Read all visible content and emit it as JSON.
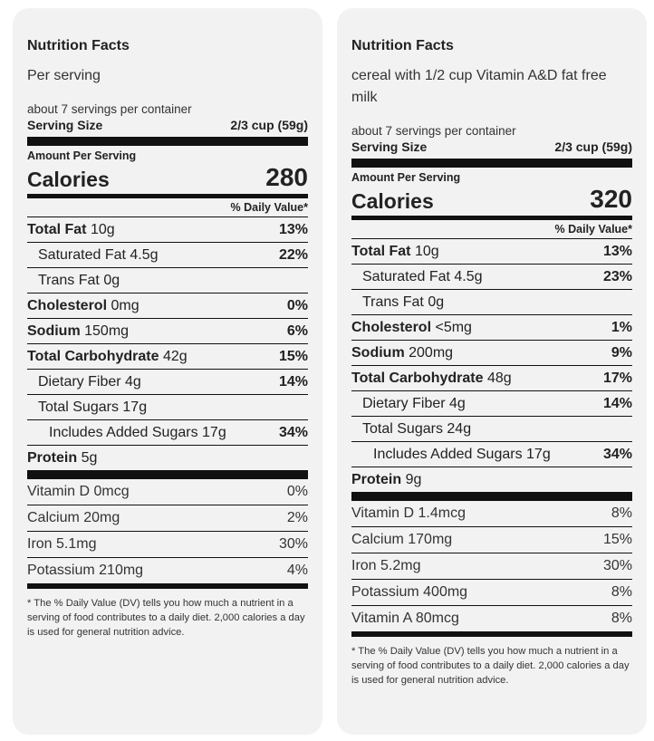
{
  "labels": [
    {
      "title": "Nutrition Facts",
      "description": "Per serving",
      "servings_per_container": "about 7 servings per container",
      "serving_size_label": "Serving Size",
      "serving_size_value": "2/3 cup (59g)",
      "amount_per_serving": "Amount Per Serving",
      "calories_label": "Calories",
      "calories_value": "280",
      "dv_header": "% Daily Value*",
      "nutrients": [
        {
          "name": "Total Fat",
          "amount": "10g",
          "dv": "13%",
          "bold": true,
          "indent": 0
        },
        {
          "name": "Saturated Fat",
          "amount": "4.5g",
          "dv": "22%",
          "bold": false,
          "indent": 1
        },
        {
          "name": "Trans Fat",
          "amount": "0g",
          "dv": "",
          "bold": false,
          "indent": 1
        },
        {
          "name": "Cholesterol",
          "amount": "0mg",
          "dv": "0%",
          "bold": true,
          "indent": 0
        },
        {
          "name": "Sodium",
          "amount": "150mg",
          "dv": "6%",
          "bold": true,
          "indent": 0
        },
        {
          "name": "Total Carbohydrate",
          "amount": "42g",
          "dv": "15%",
          "bold": true,
          "indent": 0
        },
        {
          "name": "Dietary Fiber",
          "amount": "4g",
          "dv": "14%",
          "bold": false,
          "indent": 1
        },
        {
          "name": "Total Sugars",
          "amount": "17g",
          "dv": "",
          "bold": false,
          "indent": 1
        },
        {
          "name": "Includes Added Sugars",
          "amount": "17g",
          "dv": "34%",
          "bold": false,
          "indent": 2
        },
        {
          "name": "Protein",
          "amount": "5g",
          "dv": "",
          "bold": true,
          "indent": 0
        }
      ],
      "vitamins": [
        {
          "name": "Vitamin D",
          "amount": "0mcg",
          "dv": "0%"
        },
        {
          "name": "Calcium",
          "amount": "20mg",
          "dv": "2%"
        },
        {
          "name": "Iron",
          "amount": "5.1mg",
          "dv": "30%"
        },
        {
          "name": "Potassium",
          "amount": "210mg",
          "dv": "4%"
        }
      ],
      "footnote": "* The % Daily Value (DV) tells you how much a nutrient in a serving of food contributes to a daily diet. 2,000 calories a day is used for general nutrition advice."
    },
    {
      "title": "Nutrition Facts",
      "description": "cereal with 1/2 cup Vitamin A&D fat free milk",
      "servings_per_container": "about 7 servings per container",
      "serving_size_label": "Serving Size",
      "serving_size_value": "2/3 cup (59g)",
      "amount_per_serving": "Amount Per Serving",
      "calories_label": "Calories",
      "calories_value": "320",
      "dv_header": "% Daily Value*",
      "nutrients": [
        {
          "name": "Total Fat",
          "amount": "10g",
          "dv": "13%",
          "bold": true,
          "indent": 0
        },
        {
          "name": "Saturated Fat",
          "amount": "4.5g",
          "dv": "23%",
          "bold": false,
          "indent": 1
        },
        {
          "name": "Trans Fat",
          "amount": "0g",
          "dv": "",
          "bold": false,
          "indent": 1
        },
        {
          "name": "Cholesterol",
          "amount": "<5mg",
          "dv": "1%",
          "bold": true,
          "indent": 0
        },
        {
          "name": "Sodium",
          "amount": "200mg",
          "dv": "9%",
          "bold": true,
          "indent": 0
        },
        {
          "name": "Total Carbohydrate",
          "amount": "48g",
          "dv": "17%",
          "bold": true,
          "indent": 0
        },
        {
          "name": "Dietary Fiber",
          "amount": "4g",
          "dv": "14%",
          "bold": false,
          "indent": 1
        },
        {
          "name": "Total Sugars",
          "amount": "24g",
          "dv": "",
          "bold": false,
          "indent": 1
        },
        {
          "name": "Includes Added Sugars",
          "amount": "17g",
          "dv": "34%",
          "bold": false,
          "indent": 2
        },
        {
          "name": "Protein",
          "amount": "9g",
          "dv": "",
          "bold": true,
          "indent": 0
        }
      ],
      "vitamins": [
        {
          "name": "Vitamin D",
          "amount": "1.4mcg",
          "dv": "8%"
        },
        {
          "name": "Calcium",
          "amount": "170mg",
          "dv": "15%"
        },
        {
          "name": "Iron",
          "amount": "5.2mg",
          "dv": "30%"
        },
        {
          "name": "Potassium",
          "amount": "400mg",
          "dv": "8%"
        },
        {
          "name": "Vitamin A",
          "amount": "80mcg",
          "dv": "8%"
        }
      ],
      "footnote": "* The % Daily Value (DV) tells you how much a nutrient in a serving of food contributes to a daily diet. 2,000 calories a day is used for general nutrition advice."
    }
  ]
}
